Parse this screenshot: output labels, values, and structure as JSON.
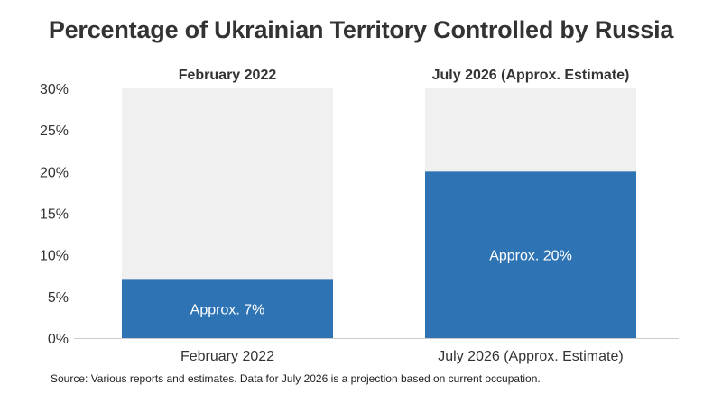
{
  "chart_data": {
    "type": "bar",
    "title": "Percentage of Ukrainian Territory Controlled by Russia",
    "categories": [
      "February 2022",
      "July 2026 (Approx. Estimate)"
    ],
    "panel_titles": [
      "February 2022",
      "July 2026 (Approx. Estimate)"
    ],
    "values": [
      7,
      20
    ],
    "data_labels": [
      "Approx. 7%",
      "Approx. 20%"
    ],
    "ylim": [
      0,
      30
    ],
    "yticks": [
      0,
      5,
      10,
      15,
      20,
      25,
      30
    ],
    "ytick_labels": [
      "0%",
      "5%",
      "10%",
      "15%",
      "20%",
      "25%",
      "30%"
    ],
    "xlabel": "",
    "ylabel": "",
    "grid": false,
    "legend": "none",
    "colors": {
      "bar": "#2e74b5",
      "background_column": "#f0f0f0",
      "axis": "#cccccc",
      "text": "#333333"
    }
  },
  "footnote": "Source: Various reports and estimates. Data for July 2026 is a projection based on current occupation."
}
